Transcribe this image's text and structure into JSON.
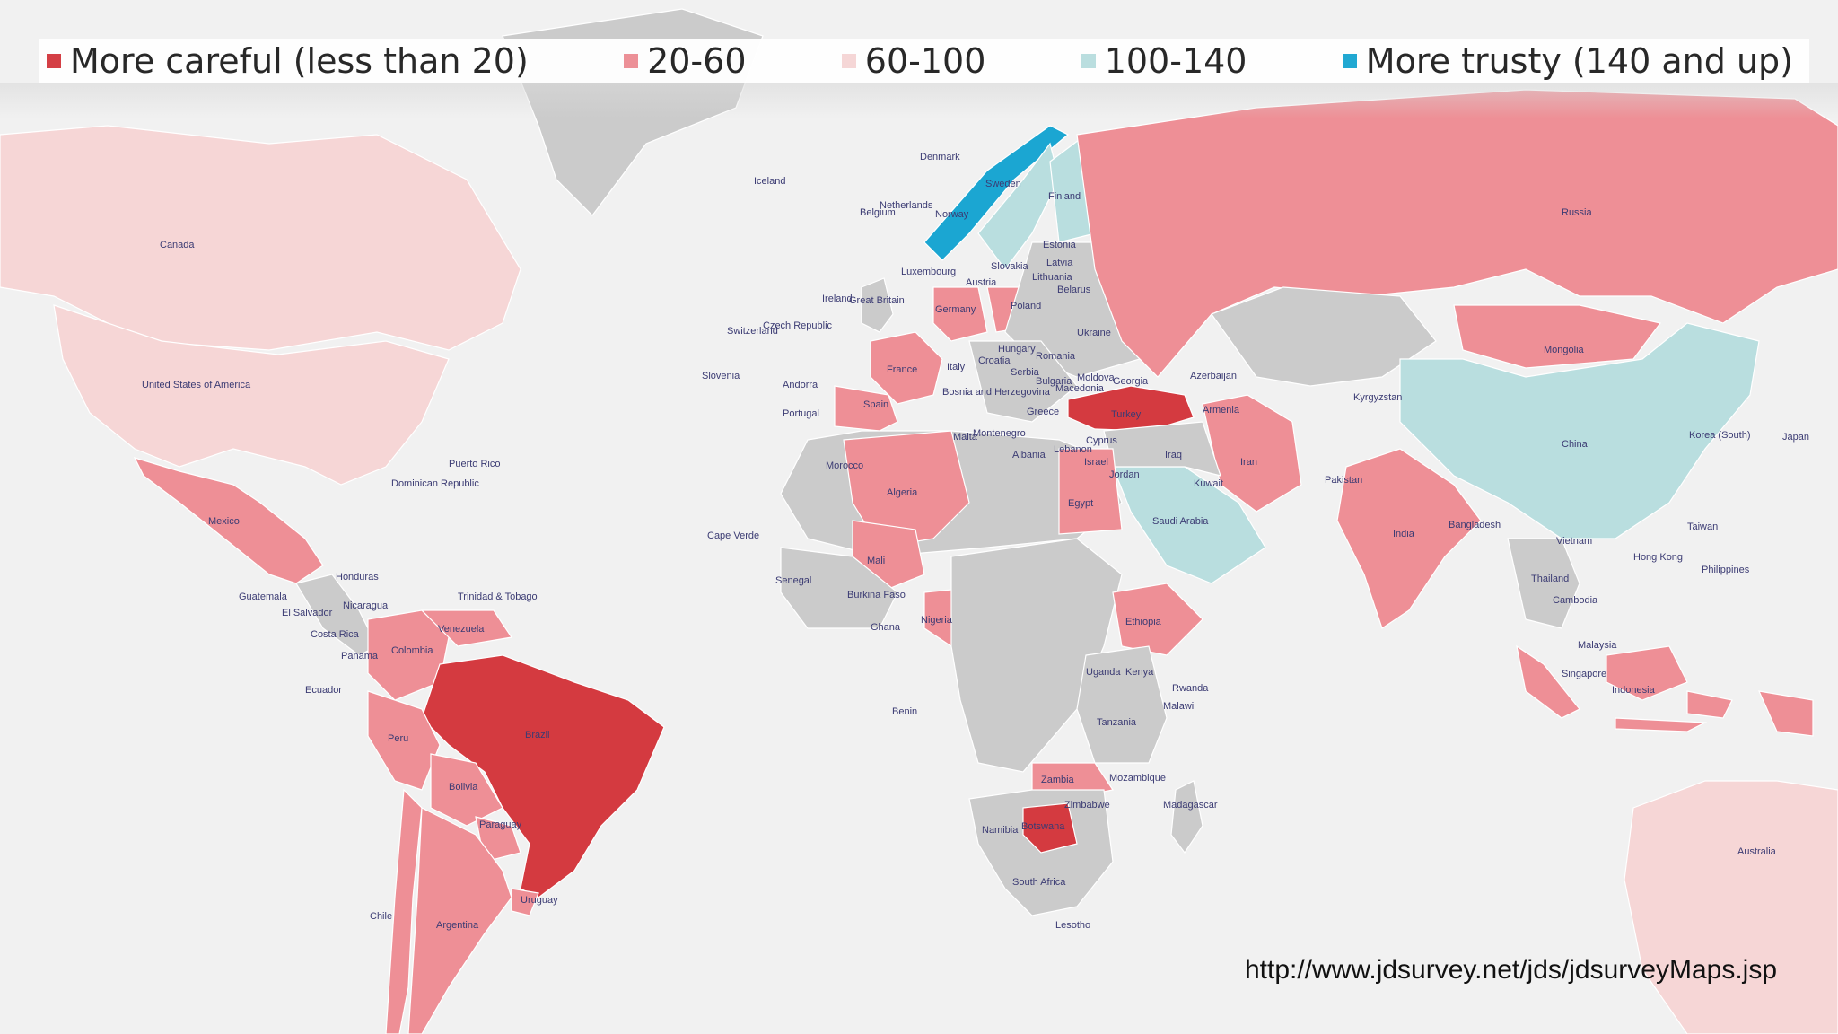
{
  "legend": [
    {
      "label": "More careful (less than 20)",
      "color": "#d43a40"
    },
    {
      "label": "20-60",
      "color": "#ee8f96"
    },
    {
      "label": "60-100",
      "color": "#f6d6d6"
    },
    {
      "label": "100-140",
      "color": "#b9dedf"
    },
    {
      "label": "More trusty (140 and up)",
      "color": "#1ba6d2"
    }
  ],
  "source_url": "http://www.jdsurvey.net/jds/jdsurveyMaps.jsp",
  "map": {
    "no_data_color": "#cbcbcb",
    "ocean_color": "#f1f1f1",
    "regions": [
      {
        "name": "Canada",
        "category": 3
      },
      {
        "name": "United States of America",
        "category": 3
      },
      {
        "name": "Mexico",
        "category": 2
      },
      {
        "name": "Greenland",
        "category": 0
      },
      {
        "name": "Brazil",
        "category": 1
      },
      {
        "name": "Colombia",
        "category": 2
      },
      {
        "name": "Venezuela",
        "category": 2
      },
      {
        "name": "Peru",
        "category": 2
      },
      {
        "name": "Bolivia",
        "category": 2
      },
      {
        "name": "Paraguay",
        "category": 2
      },
      {
        "name": "Chile",
        "category": 2
      },
      {
        "name": "Argentina",
        "category": 2
      },
      {
        "name": "Uruguay",
        "category": 2
      },
      {
        "name": "Spain",
        "category": 2
      },
      {
        "name": "France",
        "category": 2
      },
      {
        "name": "Germany",
        "category": 2
      },
      {
        "name": "Norway",
        "category": 5
      },
      {
        "name": "Sweden",
        "category": 4
      },
      {
        "name": "Finland",
        "category": 4
      },
      {
        "name": "Poland",
        "category": 2
      },
      {
        "name": "Ukraine",
        "category": 3
      },
      {
        "name": "Turkey",
        "category": 1
      },
      {
        "name": "Russia",
        "category": 2
      },
      {
        "name": "Kazakhstan",
        "category": 0
      },
      {
        "name": "Mongolia",
        "category": 2
      },
      {
        "name": "China",
        "category": 4
      },
      {
        "name": "India",
        "category": 2
      },
      {
        "name": "Iran",
        "category": 2
      },
      {
        "name": "Saudi Arabia",
        "category": 4
      },
      {
        "name": "Egypt",
        "category": 2
      },
      {
        "name": "Algeria",
        "category": 2
      },
      {
        "name": "Mali",
        "category": 2
      },
      {
        "name": "Nigeria",
        "category": 2
      },
      {
        "name": "Ethiopia",
        "category": 2
      },
      {
        "name": "Tanzania",
        "category": 2
      },
      {
        "name": "Zambia",
        "category": 2
      },
      {
        "name": "Botswana",
        "category": 1
      },
      {
        "name": "South Africa",
        "category": 2
      },
      {
        "name": "Indonesia",
        "category": 2
      },
      {
        "name": "Australia",
        "category": 3
      }
    ],
    "labels": [
      "Denmark",
      "Iceland",
      "Netherlands",
      "Belgium",
      "Norway",
      "Sweden",
      "Finland",
      "Canada",
      "Estonia",
      "Latvia",
      "Lithuania",
      "Slovakia",
      "Austria",
      "Luxembourg",
      "Belarus",
      "Ireland",
      "Great Britain",
      "Germany",
      "Poland",
      "Russia",
      "Switzerland",
      "Czech Republic",
      "Ukraine",
      "Hungary",
      "Romania",
      "Croatia",
      "Serbia",
      "Slovenia",
      "Andorra",
      "France",
      "Italy",
      "Bulgaria",
      "Moldova",
      "Georgia",
      "Azerbaijan",
      "Kyrgyzstan",
      "Mongolia",
      "United States of America",
      "Portugal",
      "Spain",
      "Bosnia and Herzegovina",
      "Macedonia",
      "Greece",
      "Turkey",
      "Armenia",
      "Montenegro",
      "Malta",
      "Cyprus",
      "Lebanon",
      "Albania",
      "Israel",
      "Iraq",
      "Jordan",
      "Iran",
      "China",
      "Korea (South)",
      "Japan",
      "Puerto Rico",
      "Dominican Republic",
      "Morocco",
      "Kuwait",
      "Pakistan",
      "Mexico",
      "Algeria",
      "Egypt",
      "Saudi Arabia",
      "Bangladesh",
      "India",
      "Taiwan",
      "Cape Verde",
      "Vietnam",
      "Hong Kong",
      "Honduras",
      "Mali",
      "Philippines",
      "Guatemala",
      "Trinidad & Tobago",
      "El Salvador",
      "Nicaragua",
      "Senegal",
      "Burkina Faso",
      "Thailand",
      "Costa Rica",
      "Venezuela",
      "Nigeria",
      "Ethiopia",
      "Cambodia",
      "Panama",
      "Colombia",
      "Ghana",
      "Malaysia",
      "Singapore",
      "Ecuador",
      "Uganda",
      "Kenya",
      "Rwanda",
      "Indonesia",
      "Benin",
      "Malawi",
      "Peru",
      "Brazil",
      "Tanzania",
      "Zambia",
      "Mozambique",
      "Bolivia",
      "Zimbabwe",
      "Madagascar",
      "Namibia",
      "Botswana",
      "Paraguay",
      "Australia",
      "South Africa",
      "Uruguay",
      "Chile",
      "Argentina",
      "Lesotho"
    ]
  }
}
